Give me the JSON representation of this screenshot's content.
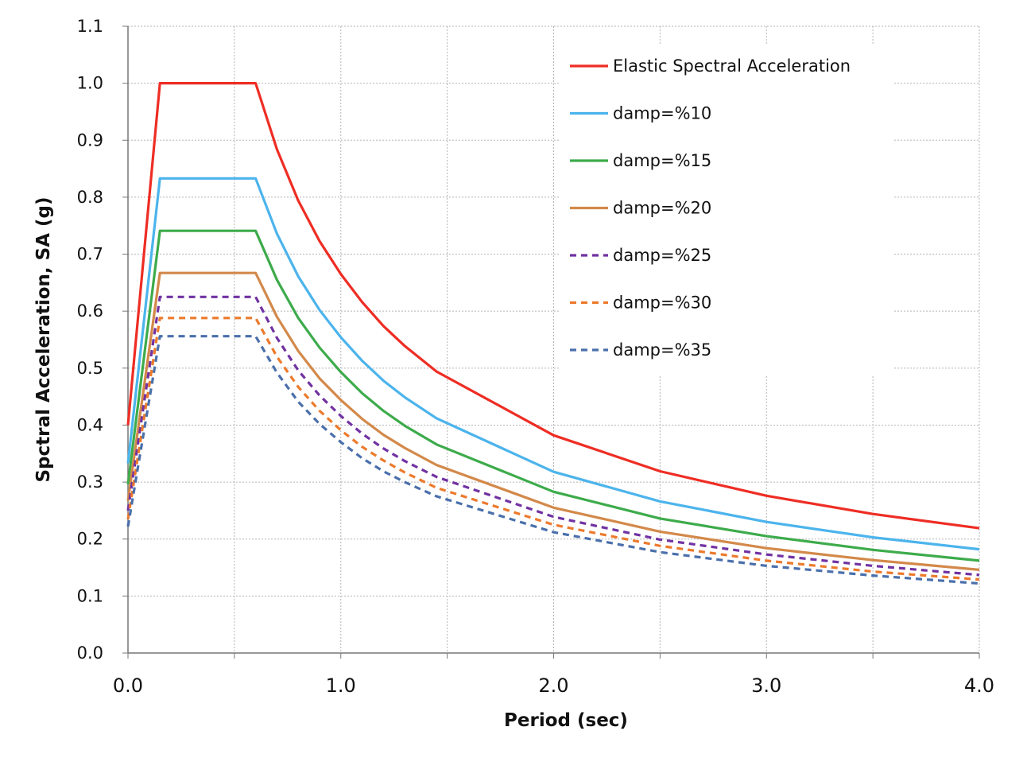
{
  "chart_data": {
    "type": "line",
    "xlabel": "Period (sec)",
    "ylabel": "Spctral Acceleration, SA (g)",
    "xlim": [
      0,
      4
    ],
    "ylim": [
      0,
      1.1
    ],
    "x_ticks": [
      "0.0",
      "1.0",
      "2.0",
      "3.0",
      "4.0"
    ],
    "x_tick_values": [
      0,
      1,
      2,
      3,
      4
    ],
    "y_ticks": [
      "0.0",
      "0.1",
      "0.2",
      "0.3",
      "0.4",
      "0.5",
      "0.6",
      "0.7",
      "0.8",
      "0.9",
      "1.0",
      "1.1"
    ],
    "y_tick_values": [
      0,
      0.1,
      0.2,
      0.3,
      0.4,
      0.5,
      0.6,
      0.7,
      0.8,
      0.9,
      1.0,
      1.1
    ],
    "grid": true,
    "grid_x_step": 0.5,
    "grid_y_step": 0.1,
    "legend_placement": "top-right",
    "x": [
      0,
      0.15,
      0.6,
      0.7,
      0.8,
      0.9,
      1.0,
      1.1,
      1.2,
      1.3,
      1.45,
      2.0,
      2.5,
      3.0,
      3.5,
      4.0
    ],
    "series": [
      {
        "name": "Elastic Spectral Acceleration",
        "color": "#ee2d24",
        "dash": false,
        "values": [
          0.4,
          1,
          1,
          0.884,
          0.794,
          0.723,
          0.665,
          0.616,
          0.574,
          0.539,
          0.494,
          0.382,
          0.319,
          0.276,
          0.244,
          0.219
        ]
      },
      {
        "name": "damp=%10",
        "color": "#4cb4ec",
        "dash": false,
        "values": [
          0.333,
          0.833,
          0.833,
          0.736,
          0.661,
          0.602,
          0.554,
          0.513,
          0.478,
          0.449,
          0.412,
          0.318,
          0.266,
          0.23,
          0.203,
          0.182
        ]
      },
      {
        "name": "damp=%15",
        "color": "#3dab4b",
        "dash": false,
        "values": [
          0.296,
          0.741,
          0.741,
          0.655,
          0.588,
          0.536,
          0.493,
          0.456,
          0.425,
          0.399,
          0.366,
          0.283,
          0.236,
          0.205,
          0.181,
          0.162
        ]
      },
      {
        "name": "damp=%20",
        "color": "#d3894a",
        "dash": false,
        "values": [
          0.267,
          0.667,
          0.667,
          0.59,
          0.53,
          0.482,
          0.444,
          0.411,
          0.383,
          0.36,
          0.33,
          0.255,
          0.213,
          0.184,
          0.163,
          0.146
        ]
      },
      {
        "name": "damp=%25",
        "color": "#7132a2",
        "dash": true,
        "values": [
          0.25,
          0.625,
          0.625,
          0.553,
          0.496,
          0.452,
          0.416,
          0.385,
          0.359,
          0.337,
          0.309,
          0.239,
          0.199,
          0.173,
          0.153,
          0.137
        ]
      },
      {
        "name": "damp=%30",
        "color": "#ec7a2c",
        "dash": true,
        "values": [
          0.235,
          0.588,
          0.588,
          0.52,
          0.467,
          0.425,
          0.391,
          0.362,
          0.338,
          0.317,
          0.29,
          0.225,
          0.188,
          0.162,
          0.143,
          0.129
        ]
      },
      {
        "name": "damp=%35",
        "color": "#4a6fab",
        "dash": true,
        "values": [
          0.222,
          0.556,
          0.556,
          0.492,
          0.441,
          0.402,
          0.37,
          0.342,
          0.319,
          0.3,
          0.275,
          0.212,
          0.177,
          0.153,
          0.136,
          0.122
        ]
      }
    ]
  }
}
